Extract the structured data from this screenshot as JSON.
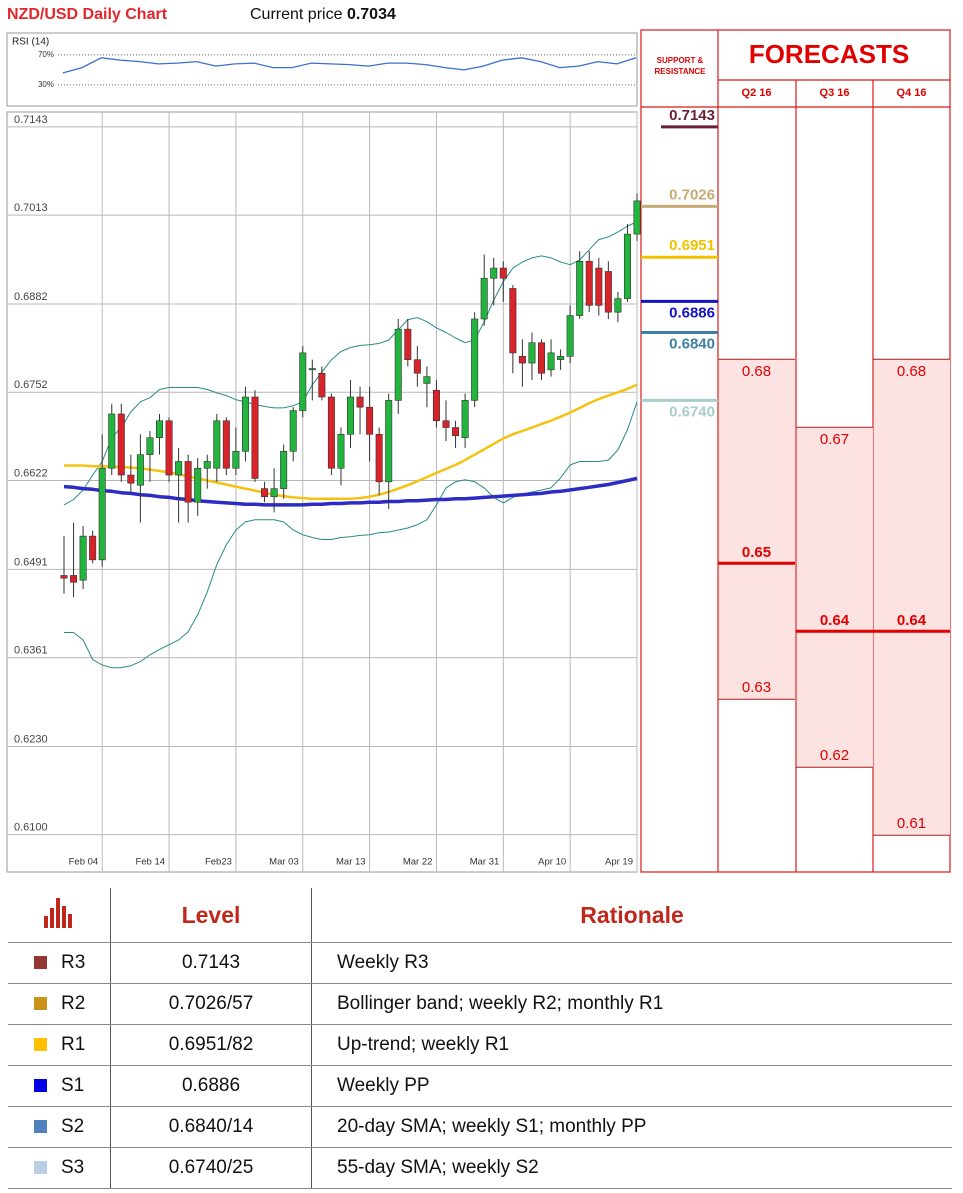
{
  "header": {
    "title": "NZD/USD Daily Chart",
    "price_label": "Current price",
    "price": 0.7034
  },
  "chart_data": [
    {
      "type": "candlestick",
      "categories": [
        null,
        null,
        null,
        null,
        "Feb 04",
        null,
        null,
        null,
        null,
        null,
        null,
        "Feb 14",
        null,
        null,
        null,
        null,
        null,
        null,
        "Feb23",
        null,
        null,
        null,
        null,
        null,
        null,
        "Mar 03",
        null,
        null,
        null,
        null,
        null,
        null,
        "Mar 13",
        null,
        null,
        null,
        null,
        null,
        null,
        "Mar 22",
        null,
        null,
        null,
        null,
        null,
        null,
        "Mar 31",
        null,
        null,
        null,
        null,
        null,
        null,
        "Apr 10",
        null,
        null,
        null,
        null,
        null,
        null,
        "Apr 19"
      ],
      "open": [
        0.6482,
        0.6482,
        0.6475,
        0.654,
        0.6505,
        0.664,
        0.672,
        0.663,
        0.6615,
        0.666,
        0.6685,
        0.671,
        0.663,
        0.665,
        0.659,
        0.664,
        0.664,
        0.671,
        0.664,
        0.6665,
        0.6745,
        0.661,
        0.6598,
        0.661,
        0.6665,
        0.6725,
        0.6785,
        0.678,
        0.6745,
        0.664,
        0.669,
        0.6745,
        0.673,
        0.669,
        0.662,
        0.674,
        0.6845,
        0.68,
        0.6765,
        0.6755,
        0.671,
        0.67,
        0.6685,
        0.674,
        0.686,
        0.692,
        0.6935,
        0.6905,
        0.6805,
        0.6795,
        0.6825,
        0.6785,
        0.68,
        0.6805,
        0.6865,
        0.6945,
        0.6935,
        0.693,
        0.687,
        0.689,
        0.6985
      ],
      "high": [
        0.654,
        0.656,
        0.6555,
        0.6548,
        0.669,
        0.6735,
        0.6735,
        0.666,
        0.669,
        0.6695,
        0.672,
        0.6715,
        0.667,
        0.666,
        0.6655,
        0.666,
        0.672,
        0.6715,
        0.67,
        0.676,
        0.6755,
        0.662,
        0.664,
        0.6675,
        0.673,
        0.682,
        0.68,
        0.679,
        0.675,
        0.67,
        0.677,
        0.676,
        0.676,
        0.67,
        0.675,
        0.686,
        0.686,
        0.682,
        0.679,
        0.677,
        0.674,
        0.671,
        0.675,
        0.687,
        0.6955,
        0.695,
        0.6945,
        0.691,
        0.683,
        0.684,
        0.683,
        0.683,
        0.6815,
        0.688,
        0.696,
        0.696,
        0.695,
        0.6945,
        0.69,
        0.7,
        0.7045
      ],
      "low": [
        0.6455,
        0.645,
        0.6462,
        0.65,
        0.6495,
        0.663,
        0.662,
        0.6605,
        0.656,
        0.662,
        0.666,
        0.662,
        0.656,
        0.656,
        0.657,
        0.661,
        0.662,
        0.663,
        0.663,
        0.665,
        0.662,
        0.659,
        0.6575,
        0.6595,
        0.665,
        0.6715,
        0.674,
        0.674,
        0.663,
        0.6615,
        0.667,
        0.669,
        0.665,
        0.66,
        0.658,
        0.672,
        0.679,
        0.676,
        0.673,
        0.67,
        0.668,
        0.667,
        0.667,
        0.673,
        0.685,
        0.688,
        0.6885,
        0.678,
        0.676,
        0.677,
        0.677,
        0.6775,
        0.6785,
        0.6795,
        0.686,
        0.687,
        0.6865,
        0.686,
        0.6855,
        0.6885,
        0.6975
      ],
      "close": [
        0.6478,
        0.6472,
        0.654,
        0.6505,
        0.664,
        0.672,
        0.663,
        0.6618,
        0.666,
        0.6685,
        0.671,
        0.663,
        0.665,
        0.659,
        0.664,
        0.665,
        0.671,
        0.664,
        0.6665,
        0.6745,
        0.6625,
        0.6598,
        0.661,
        0.6665,
        0.6725,
        0.681,
        0.6787,
        0.6745,
        0.664,
        0.669,
        0.6745,
        0.673,
        0.669,
        0.662,
        0.674,
        0.6845,
        0.68,
        0.678,
        0.6775,
        0.671,
        0.67,
        0.6688,
        0.674,
        0.686,
        0.692,
        0.6935,
        0.692,
        0.681,
        0.6795,
        0.6825,
        0.678,
        0.681,
        0.6805,
        0.6865,
        0.6945,
        0.688,
        0.688,
        0.687,
        0.689,
        0.6985,
        0.7034
      ],
      "up_color": "#22b43c",
      "down_color": "#d8232a",
      "series": [
        {
          "color": "#2a8a8a",
          "values": [
            0.6586,
            0.6594,
            0.6608,
            0.663,
            0.665,
            0.6685,
            0.67,
            0.6723,
            0.6738,
            0.6744,
            0.6756,
            0.6759,
            0.6759,
            0.6759,
            0.6759,
            0.6756,
            0.6751,
            0.6747,
            0.6741,
            0.6738,
            0.6734,
            0.6731,
            0.6729,
            0.6729,
            0.6732,
            0.6738,
            0.6763,
            0.6782,
            0.68,
            0.6812,
            0.6818,
            0.6821,
            0.6822,
            0.6824,
            0.6829,
            0.6844,
            0.6859,
            0.6862,
            0.6856,
            0.6847,
            0.684,
            0.6832,
            0.6825,
            0.6829,
            0.6856,
            0.6888,
            0.6915,
            0.6935,
            0.6944,
            0.695,
            0.6953,
            0.695,
            0.6944,
            0.694,
            0.6947,
            0.6962,
            0.6977,
            0.6981,
            0.6988,
            0.6997,
            0.7003
          ]
        },
        {
          "color": "#2a8a8a",
          "values": [
            0.6398,
            0.6398,
            0.6387,
            0.6358,
            0.635,
            0.6346,
            0.6346,
            0.6349,
            0.6355,
            0.6365,
            0.6373,
            0.638,
            0.6387,
            0.6399,
            0.6424,
            0.6458,
            0.6498,
            0.6527,
            0.6549,
            0.6561,
            0.6564,
            0.6564,
            0.6564,
            0.6561,
            0.6549,
            0.6542,
            0.6538,
            0.6535,
            0.6535,
            0.6538,
            0.6539,
            0.6541,
            0.6542,
            0.6545,
            0.6546,
            0.6549,
            0.6552,
            0.6557,
            0.6564,
            0.6586,
            0.6611,
            0.662,
            0.6623,
            0.662,
            0.6611,
            0.6597,
            0.6589,
            0.6597,
            0.6602,
            0.6605,
            0.6608,
            0.6611,
            0.6626,
            0.6645,
            0.665,
            0.665,
            0.665,
            0.6652,
            0.6667,
            0.6697,
            0.6738
          ]
        },
        {
          "color": "#f5c211",
          "values": [
            0.6644,
            0.6644,
            0.6644,
            0.6643,
            0.6643,
            0.6642,
            0.6642,
            0.6641,
            0.664,
            0.6638,
            0.6636,
            0.6634,
            0.6631,
            0.6628,
            0.6625,
            0.6622,
            0.6619,
            0.6616,
            0.6613,
            0.661,
            0.6607,
            0.6604,
            0.6601,
            0.6599,
            0.6597,
            0.6596,
            0.6595,
            0.6595,
            0.6595,
            0.6595,
            0.6595,
            0.6596,
            0.6598,
            0.6601,
            0.6605,
            0.661,
            0.6615,
            0.6621,
            0.6627,
            0.6633,
            0.6639,
            0.6645,
            0.6652,
            0.666,
            0.6668,
            0.6676,
            0.6684,
            0.669,
            0.6695,
            0.67,
            0.6705,
            0.671,
            0.6716,
            0.6722,
            0.6729,
            0.6736,
            0.6742,
            0.6747,
            0.6752,
            0.6757,
            0.6763
          ]
        },
        {
          "color": "#2c2cc4",
          "values": [
            0.6613,
            0.6612,
            0.661,
            0.6609,
            0.6607,
            0.6606,
            0.6604,
            0.6603,
            0.6601,
            0.66,
            0.6598,
            0.6597,
            0.6595,
            0.6594,
            0.6592,
            0.6591,
            0.659,
            0.6589,
            0.6588,
            0.6587,
            0.6587,
            0.6586,
            0.6586,
            0.6586,
            0.6586,
            0.6586,
            0.6587,
            0.6587,
            0.6588,
            0.6588,
            0.6589,
            0.6589,
            0.659,
            0.659,
            0.6591,
            0.6591,
            0.6592,
            0.6592,
            0.6593,
            0.6594,
            0.6594,
            0.6595,
            0.6595,
            0.6596,
            0.6597,
            0.6598,
            0.6599,
            0.66,
            0.6601,
            0.6602,
            0.6603,
            0.6605,
            0.6606,
            0.6608,
            0.661,
            0.6612,
            0.6614,
            0.6616,
            0.6619,
            0.6622,
            0.6625
          ]
        }
      ],
      "levels_title": "SUPPORT & RESISTANCE",
      "levels": [
        {
          "value": 0.7143,
          "color": "#6a1f35"
        },
        {
          "value": 0.7026,
          "color": "#c8aa74"
        },
        {
          "value": 0.6951,
          "color": "#f2c200"
        },
        {
          "value": 0.6886,
          "color": "#1212c8"
        },
        {
          "value": 0.684,
          "label": "0.6840",
          "color": "#3e7fa3"
        },
        {
          "value": 0.674,
          "label": "0.6740",
          "color": "#a9cdcd"
        }
      ],
      "ylim": [
        0.6045,
        0.7165
      ],
      "yticks": [
        0.7143,
        0.7013,
        0.6882,
        0.6752,
        0.6622,
        0.6491,
        0.6361,
        {
          "value": 0.623,
          "label": "0.6230"
        },
        {
          "value": 0.61,
          "label": "0.6100"
        }
      ],
      "grid": true
    },
    {
      "type": "line",
      "title": "RSI (14)",
      "color": "#3b6fd0",
      "values": [
        46,
        53,
        66,
        63,
        61,
        58,
        59,
        61,
        55,
        58,
        59,
        53,
        53,
        59,
        58,
        57,
        55,
        59,
        59,
        57,
        53,
        50,
        55,
        63,
        66,
        61,
        53,
        55,
        61,
        58,
        66
      ],
      "ylim": [
        2,
        99
      ],
      "yticks": [
        {
          "value": 70,
          "label": "70%"
        },
        {
          "value": 30,
          "label": "30%"
        }
      ]
    },
    {
      "type": "range",
      "title": "FORECASTS",
      "categories": [
        "Q2 16",
        "Q3 16",
        "Q4 16"
      ],
      "high": [
        0.68,
        0.67,
        0.68
      ],
      "mid": [
        0.65,
        0.64,
        0.64
      ],
      "low": [
        0.63,
        0.62,
        0.61
      ],
      "color": "#e00000",
      "fill": "#fde2e2",
      "ylim": [
        0.6046,
        0.7171
      ]
    }
  ],
  "table": {
    "columns": [
      "Level",
      "Rationale"
    ],
    "rows": [
      {
        "color": "#943634",
        "name": "R3",
        "level": "0.7143",
        "rationale": "Weekly R3"
      },
      {
        "color": "#c9931a",
        "name": "R2",
        "level": "0.7026/57",
        "rationale": "Bollinger band; weekly R2; monthly R1"
      },
      {
        "color": "#ffc000",
        "name": "R1",
        "level": "0.6951/82",
        "rationale": "Up-trend; weekly R1"
      },
      {
        "color": "#0000e6",
        "name": "S1",
        "level": "0.6886",
        "rationale": "Weekly PP"
      },
      {
        "color": "#4f81bd",
        "name": "S2",
        "level": "0.6840/14",
        "rationale": "20-day SMA; weekly S1; monthly PP"
      },
      {
        "color": "#b9cde5",
        "name": "S3",
        "level": "0.6740/25",
        "rationale": "55-day SMA; weekly S2"
      }
    ]
  }
}
